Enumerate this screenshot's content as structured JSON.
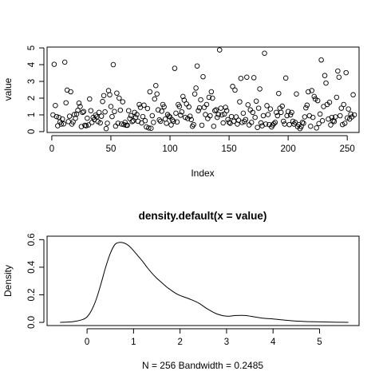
{
  "chart_data": [
    {
      "type": "scatter",
      "title": "",
      "xlabel": "Index",
      "ylabel": "value",
      "xlim": [
        -4,
        260
      ],
      "ylim": [
        -0.05,
        5.05
      ],
      "xticks": [
        0,
        50,
        100,
        150,
        200,
        250
      ],
      "yticks": [
        0,
        1,
        2,
        3,
        4,
        5
      ],
      "box": true,
      "grid": false,
      "n": 256,
      "values": [
        1.0,
        4.02,
        1.56,
        0.9,
        0.35,
        0.85,
        0.58,
        0.45,
        0.75,
        0.46,
        4.15,
        1.72,
        2.48,
        0.6,
        0.92,
        2.38,
        0.45,
        0.58,
        1.02,
        0.79,
        1.05,
        1.27,
        1.7,
        1.5,
        0.3,
        1.15,
        1.2,
        0.38,
        0.35,
        0.8,
        0.4,
        1.95,
        1.25,
        0.55,
        0.85,
        0.72,
        0.98,
        0.88,
        0.6,
        1.15,
        0.52,
        0.92,
        1.8,
        2.15,
        1.18,
        0.18,
        0.5,
        2.45,
        2.2,
        1.5,
        0.9,
        4.0,
        1.2,
        0.33,
        2.3,
        0.5,
        2.0,
        1.28,
        0.45,
        1.78,
        0.42,
        0.55,
        0.38,
        0.38,
        1.25,
        0.78,
        0.95,
        0.6,
        0.65,
        1.15,
        0.85,
        1.02,
        0.62,
        1.62,
        1.45,
        0.52,
        0.9,
        1.58,
        0.65,
        0.28,
        1.38,
        0.22,
        2.38,
        0.2,
        0.95,
        0.55,
        1.95,
        2.75,
        2.25,
        1.3,
        0.7,
        0.62,
        1.22,
        1.62,
        1.48,
        0.75,
        0.5,
        1.02,
        0.92,
        0.88,
        0.4,
        0.7,
        0.62,
        3.78,
        1.1,
        0.58,
        1.62,
        1.5,
        0.98,
        1.18,
        2.1,
        1.88,
        0.85,
        1.65,
        0.78,
        1.48,
        0.92,
        0.72,
        0.32,
        0.42,
        2.25,
        2.6,
        3.92,
        1.25,
        1.42,
        1.9,
        0.38,
        3.28,
        1.45,
        1.02,
        1.62,
        0.78,
        2.05,
        0.95,
        2.38,
        2.0,
        0.32,
        1.25,
        1.3,
        0.85,
        1.02,
        4.88,
        1.4,
        1.0,
        0.52,
        1.05,
        1.45,
        1.25,
        0.72,
        0.55,
        0.5,
        0.9,
        2.7,
        0.62,
        2.48,
        0.88,
        0.45,
        0.68,
        1.78,
        3.18,
        0.55,
        1.1,
        0.6,
        0.72,
        3.25,
        1.6,
        0.4,
        1.3,
        0.55,
        1.15,
        3.22,
        0.85,
        1.82,
        0.25,
        1.4,
        2.55,
        0.52,
        0.35,
        0.95,
        4.68,
        0.45,
        1.55,
        1.02,
        0.42,
        1.35,
        0.28,
        0.4,
        0.48,
        0.55,
        1.15,
        0.95,
        2.28,
        1.4,
        1.15,
        1.52,
        0.62,
        0.45,
        3.2,
        0.95,
        1.2,
        0.42,
        1.0,
        1.15,
        0.62,
        0.45,
        0.55,
        2.25,
        0.3,
        0.42,
        0.18,
        0.3,
        0.55,
        0.5,
        0.88,
        1.42,
        1.58,
        2.38,
        0.95,
        0.32,
        2.45,
        0.85,
        2.1,
        1.95,
        0.22,
        1.85,
        0.48,
        1.05,
        4.28,
        0.65,
        1.5,
        3.35,
        2.9,
        1.62,
        0.75,
        1.75,
        0.4,
        0.85,
        0.65,
        0.6,
        0.88,
        2.05,
        3.62,
        3.25,
        0.95,
        1.4,
        0.42,
        1.62,
        0.5,
        3.52,
        0.82,
        1.35,
        0.75,
        1.05,
        0.88,
        2.2,
        1.0
      ]
    },
    {
      "type": "line",
      "title": "density.default(x = value)",
      "xlabel": "N = 256   Bandwidth = 0.2485",
      "ylabel": "Density",
      "xlim": [
        -0.86,
        5.85
      ],
      "ylim": [
        -0.023,
        0.625
      ],
      "xticks": [
        0,
        1,
        2,
        3,
        4,
        5
      ],
      "yticks": [
        0.0,
        0.2,
        0.4,
        0.6
      ],
      "box": true,
      "grid": false,
      "x": [
        -0.58,
        -0.3,
        -0.1,
        0.0,
        0.1,
        0.2,
        0.3,
        0.4,
        0.5,
        0.6,
        0.7,
        0.8,
        0.9,
        1.0,
        1.1,
        1.2,
        1.3,
        1.4,
        1.5,
        1.6,
        1.7,
        1.8,
        1.9,
        2.0,
        2.2,
        2.4,
        2.6,
        2.8,
        3.0,
        3.2,
        3.4,
        3.6,
        3.8,
        4.0,
        4.2,
        4.4,
        4.6,
        4.8,
        5.0,
        5.2,
        5.4,
        5.62
      ],
      "y": [
        0.0,
        0.005,
        0.02,
        0.04,
        0.09,
        0.17,
        0.28,
        0.4,
        0.5,
        0.565,
        0.58,
        0.575,
        0.555,
        0.52,
        0.48,
        0.44,
        0.395,
        0.355,
        0.32,
        0.29,
        0.26,
        0.235,
        0.212,
        0.195,
        0.17,
        0.14,
        0.095,
        0.06,
        0.045,
        0.05,
        0.05,
        0.04,
        0.03,
        0.025,
        0.018,
        0.012,
        0.008,
        0.005,
        0.004,
        0.002,
        0.001,
        0.0
      ]
    }
  ]
}
